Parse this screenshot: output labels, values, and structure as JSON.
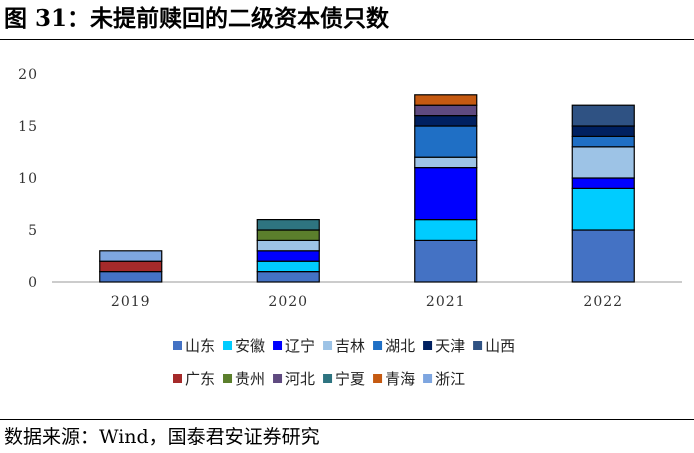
{
  "figure": {
    "title": "图 31：未提前赎回的二级资本债只数",
    "source": "数据来源：Wind，国泰君安证券研究"
  },
  "chart_data": {
    "type": "bar",
    "stacked": true,
    "categories": [
      "2019",
      "2020",
      "2021",
      "2022"
    ],
    "ylim": [
      0,
      20
    ],
    "yticks": [
      0,
      5,
      10,
      15,
      20
    ],
    "grid": false,
    "legend_position": "bottom",
    "series": [
      {
        "name": "山东",
        "color": "#4472C4",
        "values": [
          1,
          1,
          4,
          5
        ]
      },
      {
        "name": "安徽",
        "color": "#00CCFF",
        "values": [
          0,
          1,
          2,
          4
        ]
      },
      {
        "name": "辽宁",
        "color": "#0000FF",
        "values": [
          0,
          1,
          5,
          1
        ]
      },
      {
        "name": "吉林",
        "color": "#9DC3E6",
        "values": [
          0,
          1,
          1,
          3
        ]
      },
      {
        "name": "湖北",
        "color": "#1F6FC5",
        "values": [
          0,
          0,
          3,
          1
        ]
      },
      {
        "name": "天津",
        "color": "#002060",
        "values": [
          0,
          0,
          1,
          1
        ]
      },
      {
        "name": "山西",
        "color": "#2F5283",
        "values": [
          0,
          0,
          0,
          2
        ]
      },
      {
        "name": "广东",
        "color": "#A52A2A",
        "values": [
          1,
          0,
          0,
          0
        ]
      },
      {
        "name": "贵州",
        "color": "#5B7F2C",
        "values": [
          0,
          1,
          0,
          0
        ]
      },
      {
        "name": "河北",
        "color": "#5F4A80",
        "values": [
          0,
          0,
          1,
          0
        ]
      },
      {
        "name": "宁夏",
        "color": "#2E7480",
        "values": [
          0,
          1,
          0,
          0
        ]
      },
      {
        "name": "青海",
        "color": "#C55A11",
        "values": [
          0,
          0,
          1,
          0
        ]
      },
      {
        "name": "浙江",
        "color": "#7EA6E0",
        "values": [
          1,
          0,
          0,
          0
        ]
      }
    ]
  }
}
